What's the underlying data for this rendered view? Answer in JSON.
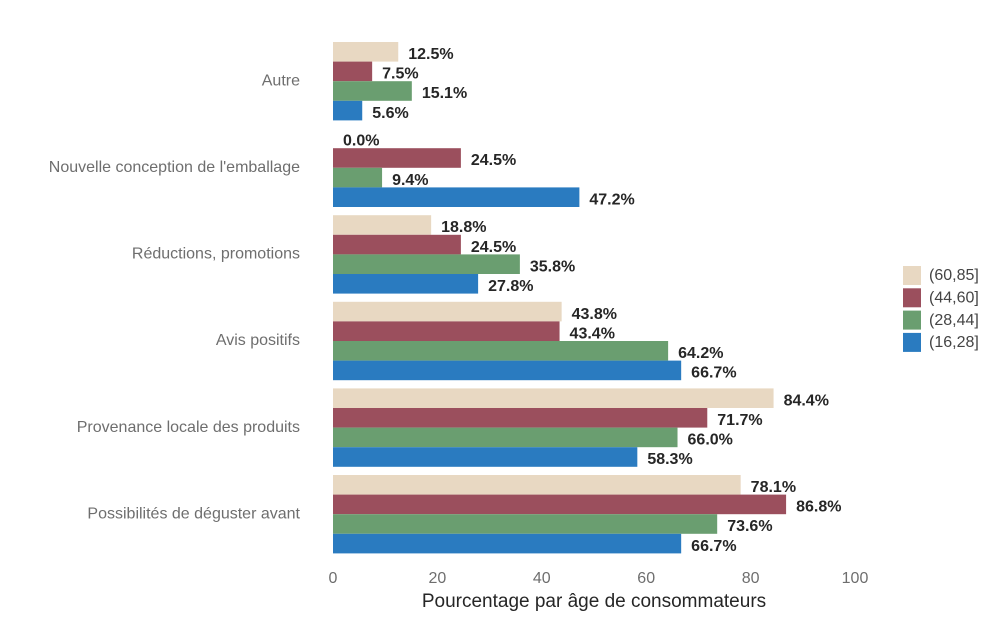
{
  "chart_data": {
    "type": "bar",
    "orientation": "horizontal",
    "title": "",
    "xlabel": "Pourcentage par âge de consommateurs",
    "ylabel": "",
    "xlim": [
      0,
      100
    ],
    "xticks": [
      "0",
      "20",
      "40",
      "60",
      "80",
      "100"
    ],
    "grid": false,
    "legend_position": "right",
    "categories": [
      "Autre",
      "Nouvelle conception de l'emballage",
      "Réductions, promotions",
      "Avis positifs",
      "Provenance locale des produits",
      "Possibilités de déguster avant"
    ],
    "series": [
      {
        "name": "(60,85]",
        "color": "#e8d8c2",
        "values": [
          12.5,
          0.0,
          18.8,
          43.8,
          84.4,
          78.1
        ],
        "labels": [
          "12.5%",
          "0.0%",
          "18.8%",
          "43.8%",
          "84.4%",
          "78.1%"
        ]
      },
      {
        "name": "(44,60]",
        "color": "#9b4f5d",
        "values": [
          7.5,
          24.5,
          24.5,
          43.4,
          71.7,
          86.8
        ],
        "labels": [
          "7.5%",
          "24.5%",
          "24.5%",
          "43.4%",
          "71.7%",
          "86.8%"
        ]
      },
      {
        "name": "(28,44]",
        "color": "#6a9e70",
        "values": [
          15.1,
          9.4,
          35.8,
          64.2,
          66.0,
          73.6
        ],
        "labels": [
          "15.1%",
          "9.4%",
          "35.8%",
          "64.2%",
          "66.0%",
          "73.6%"
        ]
      },
      {
        "name": "(16,28]",
        "color": "#2a7bc0",
        "values": [
          5.6,
          47.2,
          27.8,
          66.7,
          58.3,
          66.7
        ],
        "labels": [
          "5.6%",
          "47.2%",
          "27.8%",
          "66.7%",
          "58.3%",
          "66.7%"
        ]
      }
    ]
  }
}
